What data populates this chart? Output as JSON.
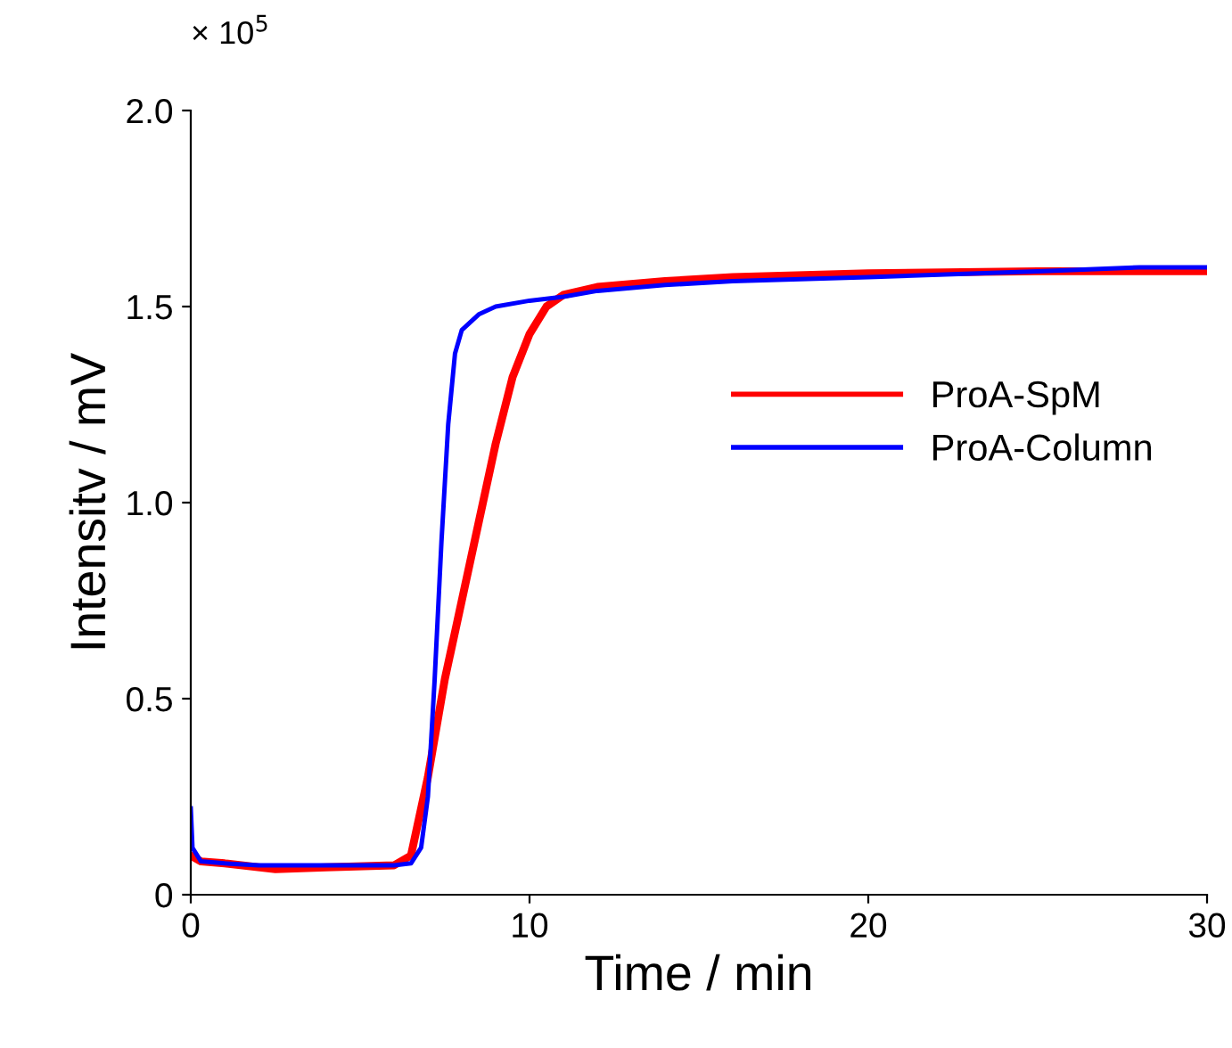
{
  "chart_data": {
    "type": "line",
    "xlabel": "Time / min",
    "ylabel": "Intensitv / mV",
    "annotations": [
      "× 10$^{5}$"
    ],
    "xlim": [
      0,
      30
    ],
    "xticks": [
      0,
      10,
      20,
      30
    ],
    "ylim": [
      0,
      2.0
    ],
    "yticks": [
      0,
      {
        "value": 0.5,
        "label": "0.5"
      },
      {
        "value": 1.0,
        "label": "1.0"
      },
      {
        "value": 1.5,
        "label": "1.5"
      },
      {
        "value": 2.0,
        "label": "2.0"
      }
    ],
    "grid": false,
    "legend": "right",
    "marker": "none",
    "line_style": "solid",
    "series": [
      {
        "name": "ProA-SpM",
        "color": "#ff0000",
        "x": [
          0,
          0.3,
          1,
          2.5,
          4,
          6,
          6.5,
          7,
          7.5,
          8,
          8.5,
          9,
          9.5,
          10,
          10.5,
          11,
          12,
          14,
          16,
          20,
          25,
          30
        ],
        "values": [
          0.1,
          0.085,
          0.08,
          0.065,
          0.07,
          0.075,
          0.1,
          0.3,
          0.55,
          0.75,
          0.95,
          1.15,
          1.32,
          1.43,
          1.5,
          1.53,
          1.55,
          1.565,
          1.575,
          1.585,
          1.59,
          1.59
        ]
      },
      {
        "name": "ProA-Column",
        "color": "#0000ff",
        "x": [
          0,
          0.05,
          0.3,
          1,
          2,
          4,
          6,
          6.5,
          6.8,
          7,
          7.2,
          7.4,
          7.6,
          7.8,
          8,
          8.5,
          9,
          10,
          11,
          12,
          14,
          16,
          20,
          25,
          28,
          30
        ],
        "values": [
          0.22,
          0.12,
          0.085,
          0.08,
          0.075,
          0.075,
          0.075,
          0.08,
          0.12,
          0.25,
          0.55,
          0.9,
          1.2,
          1.38,
          1.44,
          1.48,
          1.5,
          1.515,
          1.525,
          1.54,
          1.555,
          1.565,
          1.575,
          1.59,
          1.6,
          1.6
        ]
      }
    ]
  }
}
